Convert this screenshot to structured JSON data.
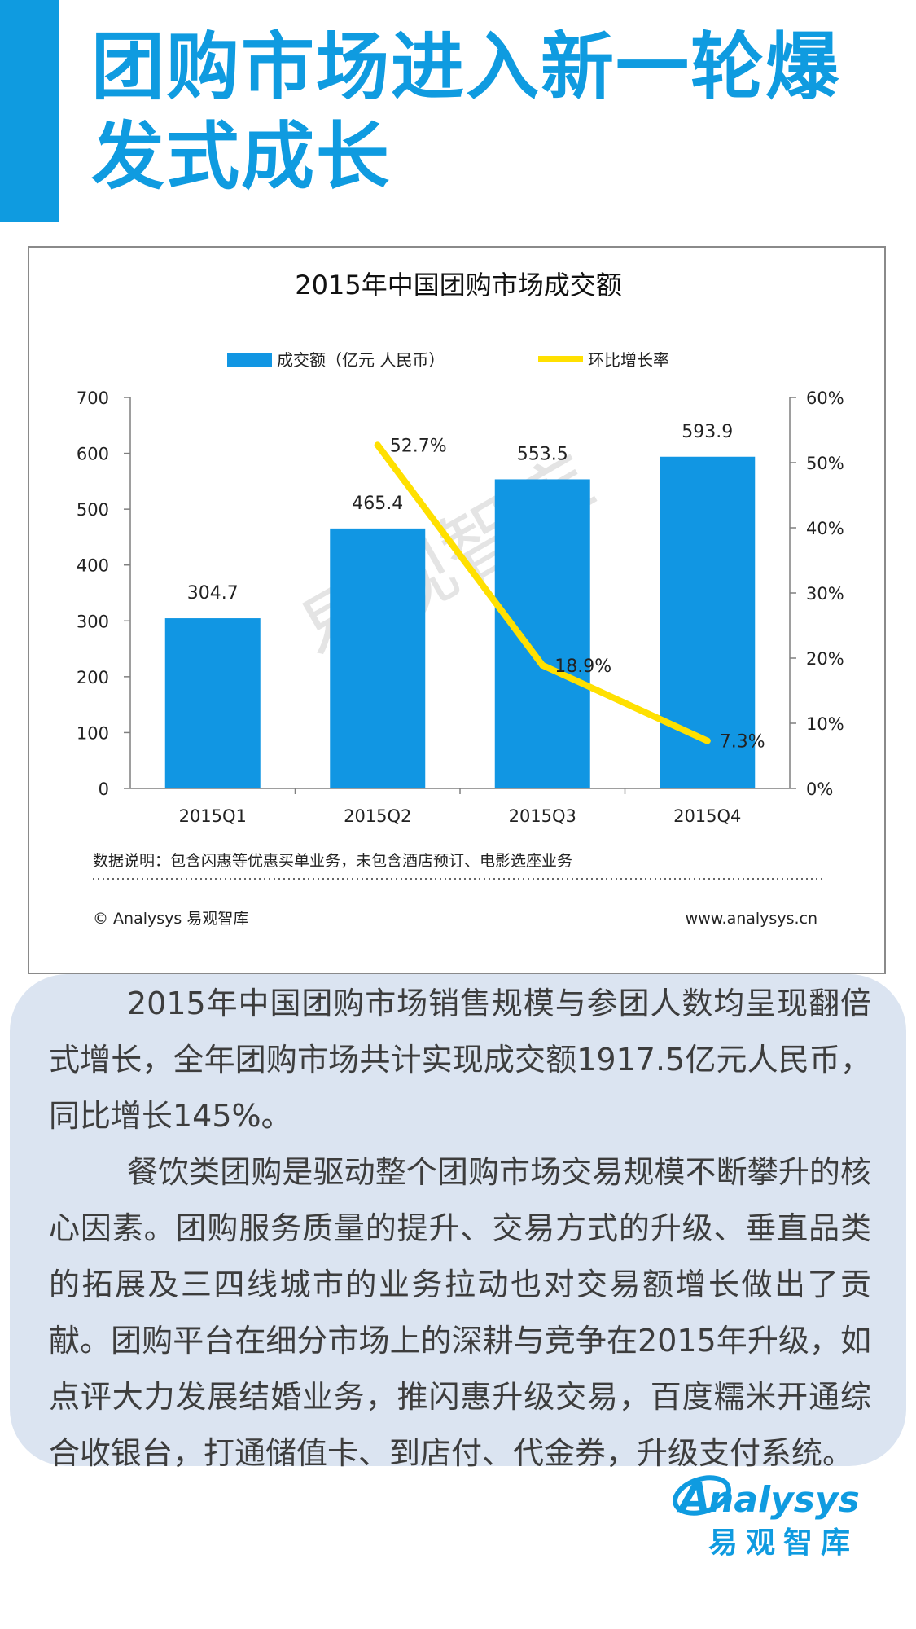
{
  "page": {
    "title": "团购市场进入新一轮爆发式成长",
    "paragraphs": [
      "2015年中国团购市场销售规模与参团人数均呈现翻倍式增长，全年团购市场共计实现成交额1917.5亿元人民币，同比增长145%。",
      "餐饮类团购是驱动整个团购市场交易规模不断攀升的核心因素。团购服务质量的提升、交易方式的升级、垂直品类的拓展及三四线城市的业务拉动也对交易额增长做出了贡献。团购平台在细分市场上的深耕与竞争在2015年升级，如点评大力发展结婚业务，推闪惠升级交易，百度糯米开通综合收银台，打通储值卡、到店付、代金券，升级支付系统。"
    ],
    "logo": {
      "wordmark": "nalysys",
      "wordmark_initial": "A",
      "name_cn": "易观智库"
    }
  },
  "chart_data": {
    "type": "bar",
    "title": "2015年中国团购市场成交额",
    "categories": [
      "2015Q1",
      "2015Q2",
      "2015Q3",
      "2015Q4"
    ],
    "series": [
      {
        "name": "成交额（亿元 人民币）",
        "type": "bar",
        "axis": "left",
        "values": [
          304.7,
          465.4,
          553.5,
          593.9
        ],
        "labels": [
          "304.7",
          "465.4",
          "553.5",
          "593.9"
        ],
        "color": "#1196e3"
      },
      {
        "name": "环比增长率",
        "type": "line",
        "axis": "right",
        "values": [
          null,
          52.7,
          18.9,
          7.3
        ],
        "labels": [
          "",
          "52.7%",
          "18.9%",
          "7.3%"
        ],
        "color": "#ffe000"
      }
    ],
    "y_left": {
      "min": 0,
      "max": 700,
      "ticks": [
        "0",
        "100",
        "200",
        "300",
        "400",
        "500",
        "600",
        "700"
      ]
    },
    "y_right": {
      "min": 0,
      "max": 60,
      "ticks": [
        "0%",
        "10%",
        "20%",
        "30%",
        "40%",
        "50%",
        "60%"
      ]
    },
    "grid": false,
    "legend_position": "top",
    "note": "数据说明：包含闪惠等优惠买单业务，未包含酒店预订、电影选座业务",
    "copyright": "© Analysys 易观智库",
    "website": "www.analysys.cn",
    "watermark": "易观智库"
  },
  "colors": {
    "accent": "#0f9be0",
    "bar": "#1196e3",
    "line": "#ffe000",
    "panel": "#dbe4f1",
    "text": "#3d3d3d"
  }
}
